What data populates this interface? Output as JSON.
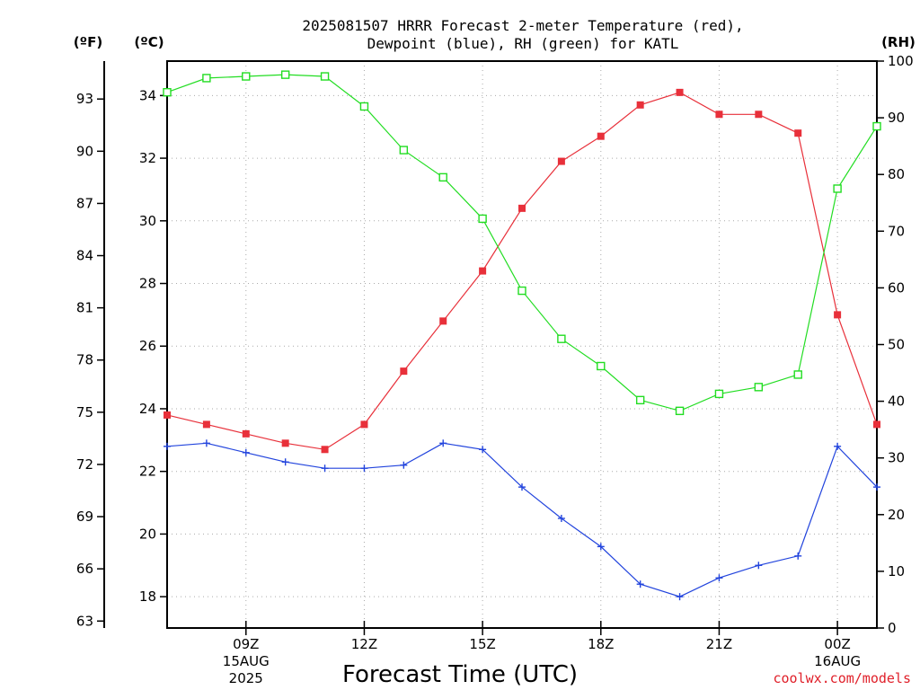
{
  "chart_data": {
    "type": "line",
    "title_lines": [
      "2025081507 HRRR Forecast 2-meter Temperature (red),",
      "Dewpoint (blue), RH (green) for KATL"
    ],
    "xlabel": "Forecast Time (UTC)",
    "credit": "coolwx.com/models",
    "left_unit": "(ºF)",
    "inner_unit": "(ºC)",
    "right_unit": "(RH)",
    "x_hours": [
      7,
      8,
      9,
      10,
      11,
      12,
      13,
      14,
      15,
      16,
      17,
      18,
      19,
      20,
      21,
      22,
      23,
      24,
      25
    ],
    "x_range": [
      7,
      25
    ],
    "x_ticks": [
      {
        "hour": 9,
        "label": "09Z",
        "label2": "15AUG",
        "label3": "2025"
      },
      {
        "hour": 12,
        "label": "12Z",
        "label2": "",
        "label3": ""
      },
      {
        "hour": 15,
        "label": "15Z",
        "label2": "",
        "label3": ""
      },
      {
        "hour": 18,
        "label": "18Z",
        "label2": "",
        "label3": ""
      },
      {
        "hour": 21,
        "label": "21Z",
        "label2": "",
        "label3": ""
      },
      {
        "hour": 24,
        "label": "00Z",
        "label2": "16AUG",
        "label3": ""
      }
    ],
    "celsius_range": [
      17.0,
      35.1
    ],
    "celsius_ticks": [
      "18",
      "20",
      "22",
      "24",
      "26",
      "28",
      "30",
      "32",
      "34"
    ],
    "fahrenheit_ticks": [
      "63",
      "66",
      "69",
      "72",
      "75",
      "78",
      "81",
      "84",
      "87",
      "90",
      "93"
    ],
    "rh_range": [
      0,
      100
    ],
    "rh_ticks": [
      "0",
      "10",
      "20",
      "30",
      "40",
      "50",
      "60",
      "70",
      "80",
      "90",
      "100"
    ],
    "grid": true,
    "series": [
      {
        "name": "Temperature",
        "axis": "celsius",
        "color": "#e8303a",
        "marker": "filled-square",
        "values": [
          23.8,
          23.5,
          23.2,
          22.9,
          22.7,
          23.5,
          25.2,
          26.8,
          28.4,
          30.4,
          31.9,
          32.7,
          33.7,
          34.1,
          33.4,
          33.4,
          32.8,
          27.0,
          23.5
        ]
      },
      {
        "name": "Dewpoint",
        "axis": "celsius",
        "color": "#2244dd",
        "marker": "plus",
        "values": [
          22.8,
          22.9,
          22.6,
          22.3,
          22.1,
          22.1,
          22.2,
          22.9,
          22.7,
          21.5,
          20.5,
          19.6,
          18.4,
          18.0,
          18.6,
          19.0,
          19.3,
          22.8,
          21.5
        ]
      },
      {
        "name": "RH",
        "axis": "rh",
        "color": "#22dd22",
        "marker": "open-square",
        "values": [
          94.5,
          97.0,
          97.3,
          97.6,
          97.3,
          92.0,
          84.3,
          79.5,
          72.2,
          59.5,
          51.0,
          46.2,
          40.2,
          38.3,
          41.3,
          42.5,
          44.7,
          77.5,
          88.5
        ]
      }
    ]
  }
}
